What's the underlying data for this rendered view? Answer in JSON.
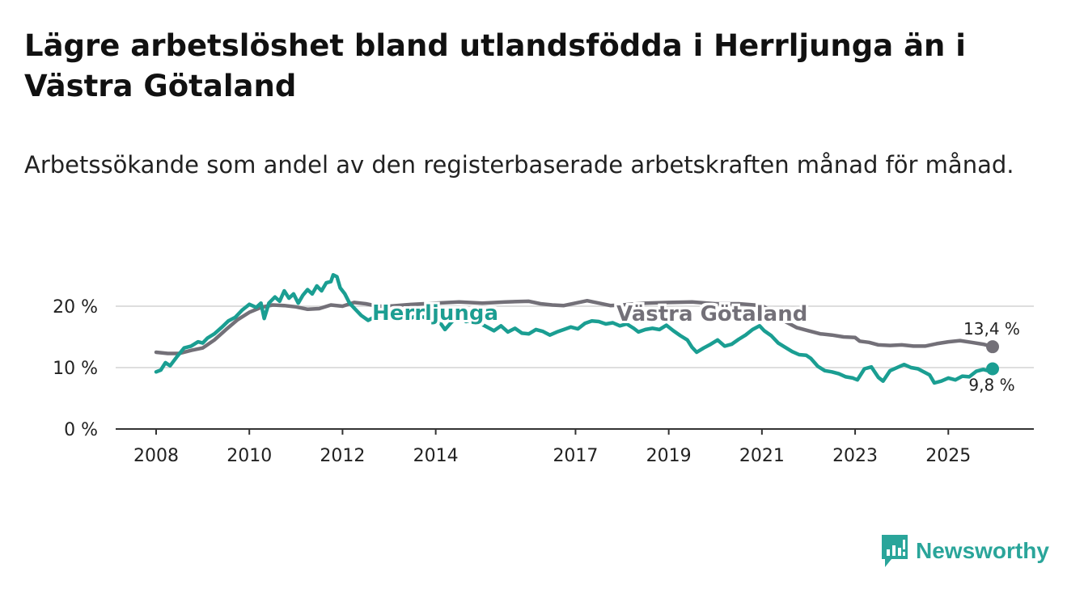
{
  "header": {
    "title": "Lägre arbetslöshet bland utlandsfödda i Herrljunga än i Västra Götaland",
    "subtitle": "Arbetssökande som andel av den registerbaserade arbetskraften månad för månad."
  },
  "brand": {
    "name": "Newsworthy",
    "color": "#2aa59a",
    "icon": "bar-chart-logo-icon"
  },
  "chart_data": {
    "type": "line",
    "title": "Lägre arbetslöshet bland utlandsfödda i Herrljunga än i Västra Götaland",
    "subtitle": "Arbetssökande som andel av den registerbaserade arbetskraften månad för månad.",
    "xlabel": "",
    "ylabel": "",
    "xlim": [
      2008.0,
      2025.95
    ],
    "ylim": [
      0,
      20
    ],
    "xticks": [
      2008,
      2010,
      2012,
      2014,
      2017,
      2019,
      2021,
      2023,
      2025
    ],
    "yticks": [
      {
        "value": 0,
        "label": "0 %"
      },
      {
        "value": 10,
        "label": "10 %"
      },
      {
        "value": 20,
        "label": "20 %"
      }
    ],
    "grid": true,
    "series": [
      {
        "name": "Västra Götaland",
        "color": "#737078",
        "end_label": "13,4 %",
        "points": [
          [
            2008.0,
            12.5
          ],
          [
            2008.25,
            12.3
          ],
          [
            2008.5,
            12.3
          ],
          [
            2008.75,
            12.8
          ],
          [
            2009.0,
            13.2
          ],
          [
            2009.25,
            14.5
          ],
          [
            2009.5,
            16.2
          ],
          [
            2009.75,
            17.8
          ],
          [
            2010.0,
            19.0
          ],
          [
            2010.25,
            19.8
          ],
          [
            2010.5,
            20.2
          ],
          [
            2010.75,
            20.1
          ],
          [
            2011.0,
            19.9
          ],
          [
            2011.25,
            19.5
          ],
          [
            2011.5,
            19.6
          ],
          [
            2011.75,
            20.2
          ],
          [
            2012.0,
            20.0
          ],
          [
            2012.25,
            20.6
          ],
          [
            2012.5,
            20.4
          ],
          [
            2012.75,
            20.0
          ],
          [
            2013.0,
            20.0
          ],
          [
            2013.5,
            20.3
          ],
          [
            2014.0,
            20.5
          ],
          [
            2014.5,
            20.7
          ],
          [
            2015.0,
            20.5
          ],
          [
            2015.5,
            20.7
          ],
          [
            2016.0,
            20.8
          ],
          [
            2016.25,
            20.4
          ],
          [
            2016.5,
            20.2
          ],
          [
            2016.75,
            20.1
          ],
          [
            2017.0,
            20.5
          ],
          [
            2017.25,
            20.9
          ],
          [
            2017.5,
            20.5
          ],
          [
            2017.75,
            20.1
          ],
          [
            2018.0,
            20.2
          ],
          [
            2018.5,
            20.5
          ],
          [
            2019.0,
            20.6
          ],
          [
            2019.5,
            20.7
          ],
          [
            2020.0,
            20.4
          ],
          [
            2020.5,
            20.4
          ],
          [
            2021.0,
            20.1
          ],
          [
            2021.25,
            19.0
          ],
          [
            2021.5,
            17.5
          ],
          [
            2021.75,
            16.5
          ],
          [
            2022.0,
            16.0
          ],
          [
            2022.25,
            15.5
          ],
          [
            2022.5,
            15.3
          ],
          [
            2022.75,
            15.0
          ],
          [
            2023.0,
            14.9
          ],
          [
            2023.1,
            14.3
          ],
          [
            2023.3,
            14.1
          ],
          [
            2023.5,
            13.7
          ],
          [
            2023.75,
            13.6
          ],
          [
            2024.0,
            13.7
          ],
          [
            2024.25,
            13.5
          ],
          [
            2024.5,
            13.5
          ],
          [
            2024.75,
            13.9
          ],
          [
            2025.0,
            14.2
          ],
          [
            2025.25,
            14.4
          ],
          [
            2025.5,
            14.1
          ],
          [
            2025.75,
            13.8
          ],
          [
            2025.95,
            13.4
          ]
        ]
      },
      {
        "name": "Herrljunga",
        "color": "#1a9e92",
        "end_label": "9,8 %",
        "points": [
          [
            2008.0,
            9.3
          ],
          [
            2008.1,
            9.6
          ],
          [
            2008.2,
            10.8
          ],
          [
            2008.3,
            10.3
          ],
          [
            2008.45,
            11.8
          ],
          [
            2008.6,
            13.2
          ],
          [
            2008.75,
            13.5
          ],
          [
            2008.9,
            14.2
          ],
          [
            2009.0,
            14.0
          ],
          [
            2009.1,
            14.8
          ],
          [
            2009.25,
            15.5
          ],
          [
            2009.4,
            16.5
          ],
          [
            2009.55,
            17.6
          ],
          [
            2009.7,
            18.2
          ],
          [
            2009.85,
            19.4
          ],
          [
            2010.0,
            20.3
          ],
          [
            2010.15,
            19.8
          ],
          [
            2010.25,
            20.5
          ],
          [
            2010.32,
            18.0
          ],
          [
            2010.42,
            20.5
          ],
          [
            2010.55,
            21.5
          ],
          [
            2010.65,
            20.8
          ],
          [
            2010.75,
            22.5
          ],
          [
            2010.85,
            21.3
          ],
          [
            2010.95,
            22.0
          ],
          [
            2011.05,
            20.5
          ],
          [
            2011.15,
            21.8
          ],
          [
            2011.25,
            22.7
          ],
          [
            2011.35,
            22.0
          ],
          [
            2011.45,
            23.3
          ],
          [
            2011.55,
            22.5
          ],
          [
            2011.65,
            23.8
          ],
          [
            2011.75,
            24.0
          ],
          [
            2011.8,
            25.1
          ],
          [
            2011.88,
            24.8
          ],
          [
            2011.95,
            23.0
          ],
          [
            2012.05,
            22.0
          ],
          [
            2012.15,
            20.5
          ],
          [
            2012.25,
            19.7
          ],
          [
            2012.4,
            18.5
          ],
          [
            2012.55,
            17.7
          ],
          [
            2012.7,
            18.3
          ],
          [
            2012.85,
            18.8
          ],
          [
            2013.0,
            18.5
          ],
          [
            2013.15,
            19.5
          ],
          [
            2013.3,
            19.2
          ],
          [
            2013.45,
            18.0
          ],
          [
            2013.6,
            18.5
          ],
          [
            2013.75,
            18.2
          ],
          [
            2013.9,
            17.5
          ],
          [
            2014.05,
            17.8
          ],
          [
            2014.2,
            16.2
          ],
          [
            2014.35,
            17.5
          ],
          [
            2014.5,
            18.2
          ],
          [
            2014.65,
            17.5
          ],
          [
            2014.8,
            17.8
          ],
          [
            2014.95,
            17.2
          ],
          [
            2015.1,
            16.6
          ],
          [
            2015.25,
            16.0
          ],
          [
            2015.4,
            16.8
          ],
          [
            2015.55,
            15.8
          ],
          [
            2015.7,
            16.4
          ],
          [
            2015.85,
            15.6
          ],
          [
            2016.0,
            15.5
          ],
          [
            2016.15,
            16.2
          ],
          [
            2016.3,
            15.9
          ],
          [
            2016.45,
            15.3
          ],
          [
            2016.6,
            15.8
          ],
          [
            2016.75,
            16.2
          ],
          [
            2016.9,
            16.6
          ],
          [
            2017.05,
            16.3
          ],
          [
            2017.2,
            17.2
          ],
          [
            2017.35,
            17.6
          ],
          [
            2017.5,
            17.5
          ],
          [
            2017.65,
            17.1
          ],
          [
            2017.8,
            17.3
          ],
          [
            2017.95,
            16.8
          ],
          [
            2018.1,
            17.1
          ],
          [
            2018.25,
            16.4
          ],
          [
            2018.35,
            15.8
          ],
          [
            2018.5,
            16.2
          ],
          [
            2018.65,
            16.4
          ],
          [
            2018.8,
            16.2
          ],
          [
            2018.95,
            16.9
          ],
          [
            2019.1,
            16.0
          ],
          [
            2019.25,
            15.2
          ],
          [
            2019.4,
            14.5
          ],
          [
            2019.5,
            13.3
          ],
          [
            2019.6,
            12.5
          ],
          [
            2019.75,
            13.2
          ],
          [
            2019.9,
            13.8
          ],
          [
            2020.05,
            14.5
          ],
          [
            2020.2,
            13.5
          ],
          [
            2020.35,
            13.8
          ],
          [
            2020.5,
            14.6
          ],
          [
            2020.65,
            15.3
          ],
          [
            2020.8,
            16.2
          ],
          [
            2020.95,
            16.8
          ],
          [
            2021.05,
            16.0
          ],
          [
            2021.2,
            15.2
          ],
          [
            2021.35,
            14.0
          ],
          [
            2021.5,
            13.3
          ],
          [
            2021.65,
            12.6
          ],
          [
            2021.8,
            12.1
          ],
          [
            2021.95,
            12.0
          ],
          [
            2022.05,
            11.5
          ],
          [
            2022.2,
            10.2
          ],
          [
            2022.35,
            9.5
          ],
          [
            2022.5,
            9.3
          ],
          [
            2022.65,
            9.0
          ],
          [
            2022.8,
            8.5
          ],
          [
            2022.95,
            8.3
          ],
          [
            2023.05,
            8.0
          ],
          [
            2023.2,
            9.8
          ],
          [
            2023.35,
            10.1
          ],
          [
            2023.5,
            8.4
          ],
          [
            2023.6,
            7.8
          ],
          [
            2023.75,
            9.5
          ],
          [
            2023.9,
            10.0
          ],
          [
            2024.05,
            10.5
          ],
          [
            2024.2,
            10.0
          ],
          [
            2024.35,
            9.8
          ],
          [
            2024.5,
            9.2
          ],
          [
            2024.6,
            8.8
          ],
          [
            2024.7,
            7.5
          ],
          [
            2024.85,
            7.8
          ],
          [
            2025.0,
            8.3
          ],
          [
            2025.15,
            8.0
          ],
          [
            2025.3,
            8.6
          ],
          [
            2025.45,
            8.5
          ],
          [
            2025.6,
            9.4
          ],
          [
            2025.75,
            9.7
          ],
          [
            2025.85,
            9.5
          ],
          [
            2025.95,
            9.8
          ]
        ]
      }
    ],
    "series_label_positions": {
      "Herrljunga": "inline-left",
      "Västra Götaland": "inline-right"
    },
    "legend": "none"
  }
}
